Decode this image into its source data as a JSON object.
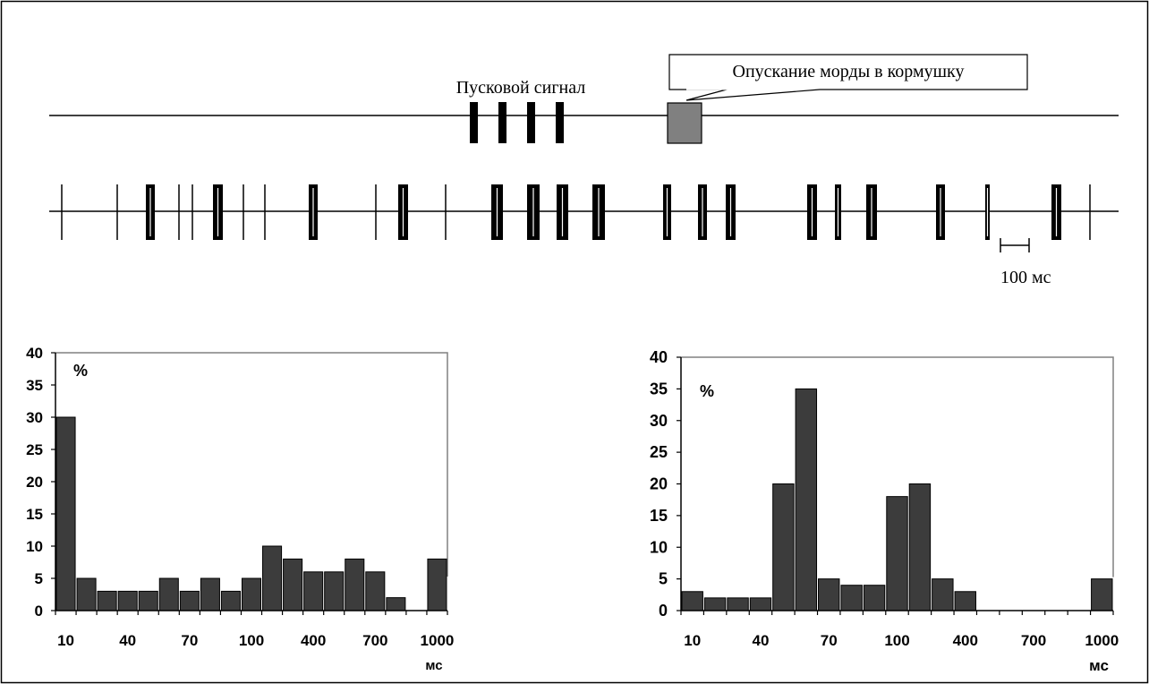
{
  "diagram": {
    "trigger_label": "Пусковой сигнал",
    "callout_label": "Опускание морды в кормушку",
    "scale_label": "100 мс"
  },
  "colors": {
    "bar_fill": "#3c3c3c",
    "feeder_box": "#808080",
    "frame": "#808080",
    "ink": "#000000"
  },
  "chart_data": [
    {
      "type": "bar",
      "ylabel": "%",
      "xlabel": "мс",
      "ylim": [
        0,
        40
      ],
      "yticks": [
        "0",
        "5",
        "10",
        "15",
        "20",
        "25",
        "30",
        "35",
        "40"
      ],
      "values": [
        30,
        5,
        3,
        3,
        3,
        5,
        3,
        5,
        3,
        5,
        10,
        8,
        6,
        6,
        8,
        6,
        2,
        0,
        8
      ],
      "xticks": [
        "10",
        "40",
        "70",
        "100",
        "400",
        "700",
        "1000"
      ]
    },
    {
      "type": "bar",
      "ylabel": "%",
      "xlabel": "мс",
      "ylim": [
        0,
        40
      ],
      "yticks": [
        "0",
        "5",
        "10",
        "15",
        "20",
        "25",
        "30",
        "35",
        "40"
      ],
      "values": [
        3,
        2,
        2,
        2,
        20,
        35,
        5,
        4,
        4,
        18,
        20,
        5,
        3,
        0,
        0,
        0,
        0,
        0,
        5
      ],
      "xticks": [
        "10",
        "40",
        "70",
        "100",
        "400",
        "700",
        "1000"
      ]
    }
  ]
}
